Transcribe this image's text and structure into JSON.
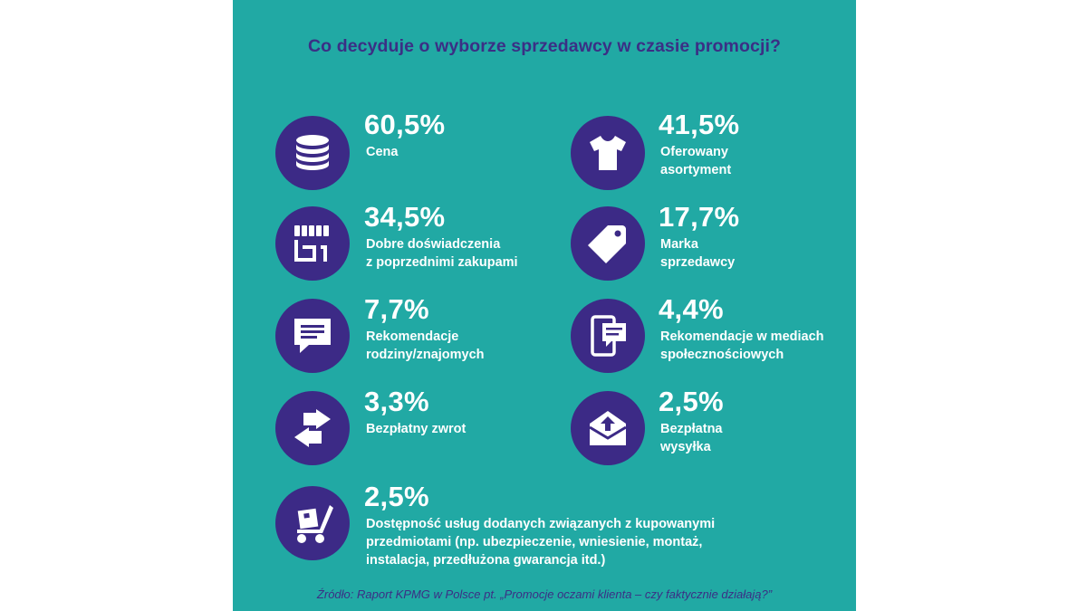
{
  "title": "Co decyduje o wyborze sprzedawcy w czasie promocji?",
  "colors": {
    "background": "#21a9a4",
    "accent": "#3c2a86",
    "text": "#ffffff",
    "title": "#3b2f85"
  },
  "items": [
    {
      "icon": "coins-stack-icon",
      "percent": "60,5%",
      "label_lines": [
        "Cena"
      ]
    },
    {
      "icon": "tshirt-icon",
      "percent": "41,5%",
      "label_lines": [
        "Oferowany",
        "asortyment"
      ]
    },
    {
      "icon": "storefront-icon",
      "percent": "34,5%",
      "label_lines": [
        "Dobre doświadczenia",
        "z poprzednimi zakupami"
      ]
    },
    {
      "icon": "price-tag-icon",
      "percent": "17,7%",
      "label_lines": [
        "Marka",
        "sprzedawcy"
      ]
    },
    {
      "icon": "speech-bubble-icon",
      "percent": "7,7%",
      "label_lines": [
        "Rekomendacje",
        "rodziny/znajomych"
      ]
    },
    {
      "icon": "phone-chat-icon",
      "percent": "4,4%",
      "label_lines": [
        "Rekomendacje w mediach",
        "społecznościowych"
      ]
    },
    {
      "icon": "return-arrows-icon",
      "percent": "3,3%",
      "label_lines": [
        "Bezpłatny zwrot"
      ]
    },
    {
      "icon": "envelope-upload-icon",
      "percent": "2,5%",
      "label_lines": [
        "Bezpłatna",
        "wysyłka"
      ]
    },
    {
      "icon": "hand-truck-icon",
      "percent": "2,5%",
      "label_lines": [
        "Dostępność usług dodanych związanych z kupowanymi",
        "przedmiotami (np. ubezpieczenie, wniesienie, montaż,",
        "instalacja, przedłużona gwarancja itd.)"
      ]
    }
  ],
  "source": "Źródło: Raport KPMG w Polsce pt. „Promocje oczami klienta – czy faktycznie działają?”"
}
